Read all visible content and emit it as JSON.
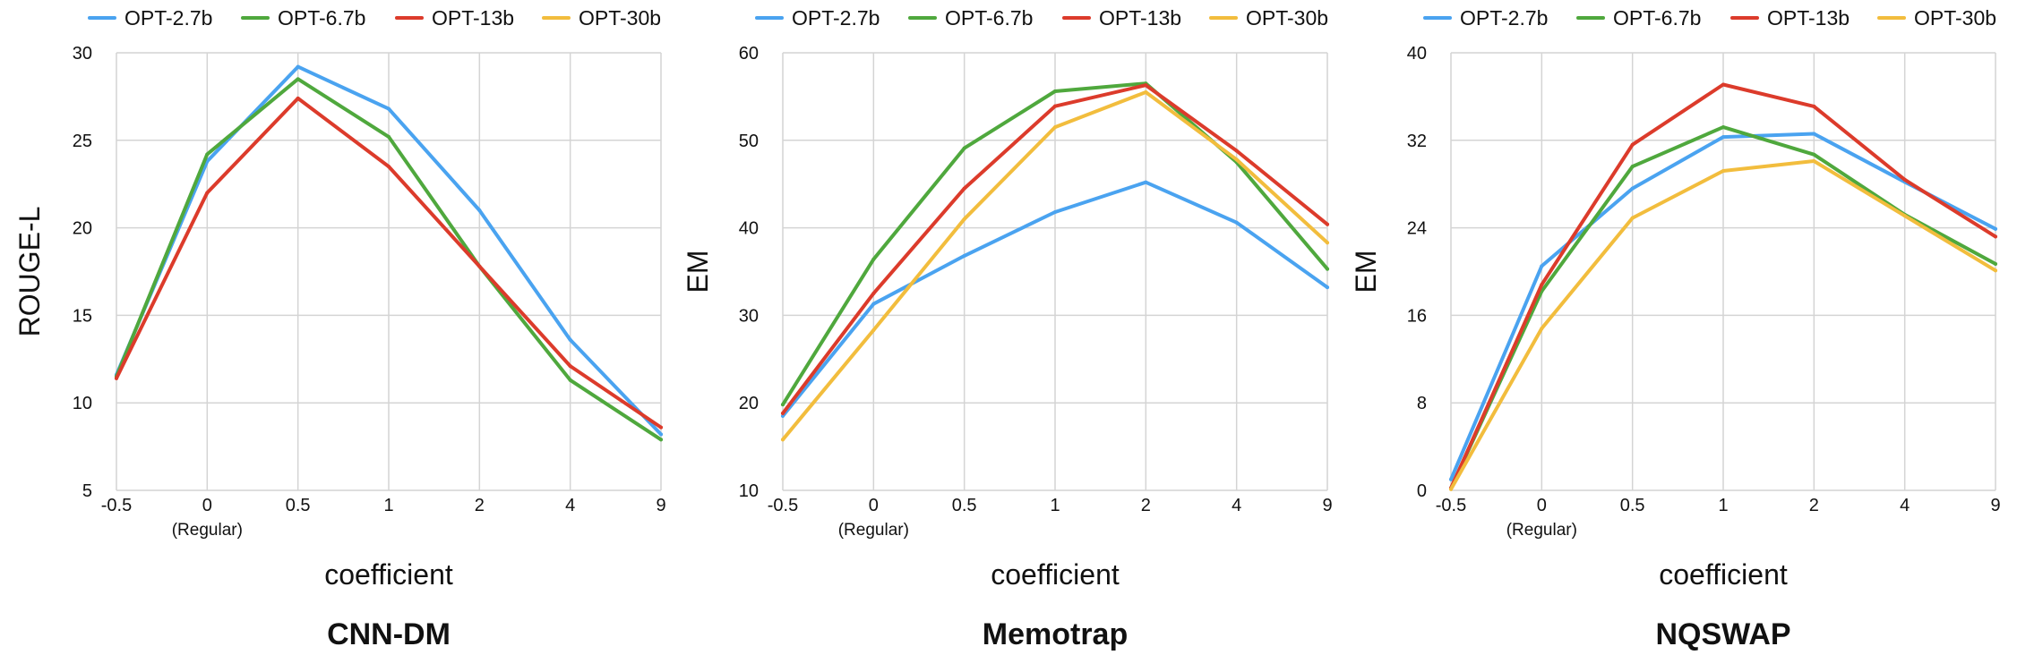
{
  "colors": {
    "OPT-2.7b": "#4aa3f0",
    "OPT-6.7b": "#4fa83d",
    "OPT-13b": "#dc3b2b",
    "OPT-30b": "#f2bd3d",
    "grid": "#d4d4d4"
  },
  "legend": [
    "OPT-2.7b",
    "OPT-6.7b",
    "OPT-13b",
    "OPT-30b"
  ],
  "chart_data": [
    {
      "type": "line",
      "title": "CNN-DM",
      "xlabel": "coefficient",
      "ylabel": "ROUGE-L",
      "categories": [
        "-0.5",
        "0",
        "0.5",
        "1",
        "2",
        "4",
        "9"
      ],
      "category_sublabels": {
        "0": "(Regular)"
      },
      "ylim": [
        5,
        30
      ],
      "yticks": [
        5,
        10,
        15,
        20,
        25,
        30
      ],
      "series": [
        {
          "name": "OPT-2.7b",
          "values": [
            11.6,
            23.8,
            29.2,
            26.8,
            21.0,
            13.6,
            8.2
          ]
        },
        {
          "name": "OPT-6.7b",
          "values": [
            11.5,
            24.2,
            28.5,
            25.2,
            17.8,
            11.3,
            7.9
          ]
        },
        {
          "name": "OPT-13b",
          "values": [
            11.4,
            22.0,
            27.4,
            23.5,
            17.8,
            12.1,
            8.6
          ]
        }
      ]
    },
    {
      "type": "line",
      "title": "Memotrap",
      "xlabel": "coefficient",
      "ylabel": "EM",
      "categories": [
        "-0.5",
        "0",
        "0.5",
        "1",
        "2",
        "4",
        "9"
      ],
      "category_sublabels": {
        "0": "(Regular)"
      },
      "ylim": [
        10,
        60
      ],
      "yticks": [
        10,
        20,
        30,
        40,
        50,
        60
      ],
      "series": [
        {
          "name": "OPT-2.7b",
          "values": [
            18.5,
            31.3,
            36.8,
            41.8,
            45.2,
            40.6,
            33.2
          ]
        },
        {
          "name": "OPT-6.7b",
          "values": [
            19.8,
            36.4,
            49.1,
            55.6,
            56.5,
            47.5,
            35.3
          ]
        },
        {
          "name": "OPT-13b",
          "values": [
            18.8,
            32.5,
            44.5,
            53.9,
            56.3,
            48.8,
            40.4
          ]
        },
        {
          "name": "OPT-30b",
          "values": [
            15.8,
            28.3,
            41.0,
            51.5,
            55.5,
            47.8,
            38.3
          ]
        }
      ]
    },
    {
      "type": "line",
      "title": "NQSWAP",
      "xlabel": "coefficient",
      "ylabel": "EM",
      "categories": [
        "-0.5",
        "0",
        "0.5",
        "1",
        "2",
        "4",
        "9"
      ],
      "category_sublabels": {
        "0": "(Regular)"
      },
      "ylim": [
        0,
        40
      ],
      "yticks": [
        0,
        8,
        16,
        24,
        32,
        40
      ],
      "series": [
        {
          "name": "OPT-2.7b",
          "values": [
            1.0,
            20.5,
            27.6,
            32.3,
            32.6,
            28.2,
            23.9
          ]
        },
        {
          "name": "OPT-6.7b",
          "values": [
            0.2,
            18.2,
            29.6,
            33.2,
            30.7,
            25.2,
            20.7
          ]
        },
        {
          "name": "OPT-13b",
          "values": [
            0.2,
            18.8,
            31.6,
            37.1,
            35.1,
            28.4,
            23.2
          ]
        },
        {
          "name": "OPT-30b",
          "values": [
            0.1,
            14.8,
            24.9,
            29.2,
            30.1,
            25.1,
            20.1
          ]
        }
      ]
    }
  ]
}
